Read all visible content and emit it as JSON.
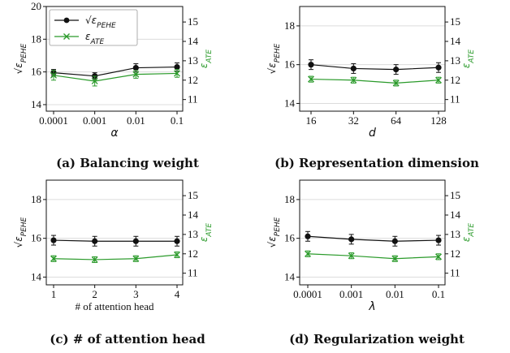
{
  "colors": {
    "pehe": "#111111",
    "ate": "#2a9a2a",
    "grid": "#dcdcdc"
  },
  "legend": {
    "pehe_label": "√ε_PEHE",
    "ate_label": "ε_ATE"
  },
  "chart_data": [
    {
      "type": "line",
      "panel": "a",
      "caption": "(a) Balancing weight",
      "xlabel": "α",
      "ylabel_left": "√ε_PEHE",
      "ylabel_right": "ε_ATE",
      "categories": [
        "0.0001",
        "0.001",
        "0.01",
        "0.1"
      ],
      "ylim_left": [
        13.6,
        20
      ],
      "ylim_right": [
        10.4,
        15.8
      ],
      "yticks_left": [
        14,
        16,
        18,
        20
      ],
      "yticks_right": [
        11,
        12,
        13,
        14,
        15
      ],
      "grid": true,
      "legend": "top-left",
      "series": [
        {
          "name": "√ε_PEHE",
          "axis": "left",
          "marker": "circle",
          "values": [
            15.95,
            15.75,
            16.25,
            16.3
          ],
          "errors": [
            0.2,
            0.2,
            0.25,
            0.25
          ]
        },
        {
          "name": "ε_ATE",
          "axis": "right",
          "marker": "x",
          "values": [
            12.25,
            11.95,
            12.3,
            12.35
          ],
          "errors": [
            0.25,
            0.25,
            0.2,
            0.2
          ]
        }
      ]
    },
    {
      "type": "line",
      "panel": "b",
      "caption": "(b) Representation dimension",
      "xlabel": "d",
      "ylabel_left": "√ε_PEHE",
      "ylabel_right": "ε_ATE",
      "categories": [
        "16",
        "32",
        "64",
        "128"
      ],
      "ylim_left": [
        13.6,
        19
      ],
      "ylim_right": [
        10.4,
        15.8
      ],
      "yticks_left": [
        14,
        16,
        18
      ],
      "yticks_right": [
        11,
        12,
        13,
        14,
        15
      ],
      "grid": true,
      "series": [
        {
          "name": "√ε_PEHE",
          "axis": "left",
          "marker": "circle",
          "values": [
            16.0,
            15.8,
            15.75,
            15.85
          ],
          "errors": [
            0.25,
            0.25,
            0.25,
            0.25
          ]
        },
        {
          "name": "ε_ATE",
          "axis": "right",
          "marker": "x",
          "values": [
            12.05,
            12.0,
            11.85,
            12.0
          ],
          "errors": [
            0.15,
            0.15,
            0.15,
            0.15
          ]
        }
      ]
    },
    {
      "type": "line",
      "panel": "c",
      "caption": "(c) # of attention head",
      "xlabel": "# of attention head",
      "ylabel_left": "√ε_PEHE",
      "ylabel_right": "ε_ATE",
      "categories": [
        "1",
        "2",
        "3",
        "4"
      ],
      "ylim_left": [
        13.6,
        19
      ],
      "ylim_right": [
        10.4,
        15.8
      ],
      "yticks_left": [
        14,
        16,
        18
      ],
      "yticks_right": [
        11,
        12,
        13,
        14,
        15
      ],
      "grid": true,
      "series": [
        {
          "name": "√ε_PEHE",
          "axis": "left",
          "marker": "circle",
          "values": [
            15.9,
            15.85,
            15.85,
            15.85
          ],
          "errors": [
            0.25,
            0.25,
            0.25,
            0.25
          ]
        },
        {
          "name": "ε_ATE",
          "axis": "right",
          "marker": "x",
          "values": [
            11.75,
            11.7,
            11.75,
            11.95
          ],
          "errors": [
            0.15,
            0.15,
            0.15,
            0.15
          ]
        }
      ]
    },
    {
      "type": "line",
      "panel": "d",
      "caption": "(d) Regularization weight",
      "xlabel": "λ",
      "ylabel_left": "√ε_PEHE",
      "ylabel_right": "ε_ATE",
      "categories": [
        "0.0001",
        "0.001",
        "0.01",
        "0.1"
      ],
      "ylim_left": [
        13.6,
        19
      ],
      "ylim_right": [
        10.4,
        15.8
      ],
      "yticks_left": [
        14,
        16,
        18
      ],
      "yticks_right": [
        11,
        12,
        13,
        14,
        15
      ],
      "grid": true,
      "series": [
        {
          "name": "√ε_PEHE",
          "axis": "left",
          "marker": "circle",
          "values": [
            16.1,
            15.95,
            15.85,
            15.9
          ],
          "errors": [
            0.25,
            0.25,
            0.25,
            0.25
          ]
        },
        {
          "name": "ε_ATE",
          "axis": "right",
          "marker": "x",
          "values": [
            12.0,
            11.9,
            11.75,
            11.85
          ],
          "errors": [
            0.15,
            0.15,
            0.15,
            0.15
          ]
        }
      ]
    }
  ]
}
